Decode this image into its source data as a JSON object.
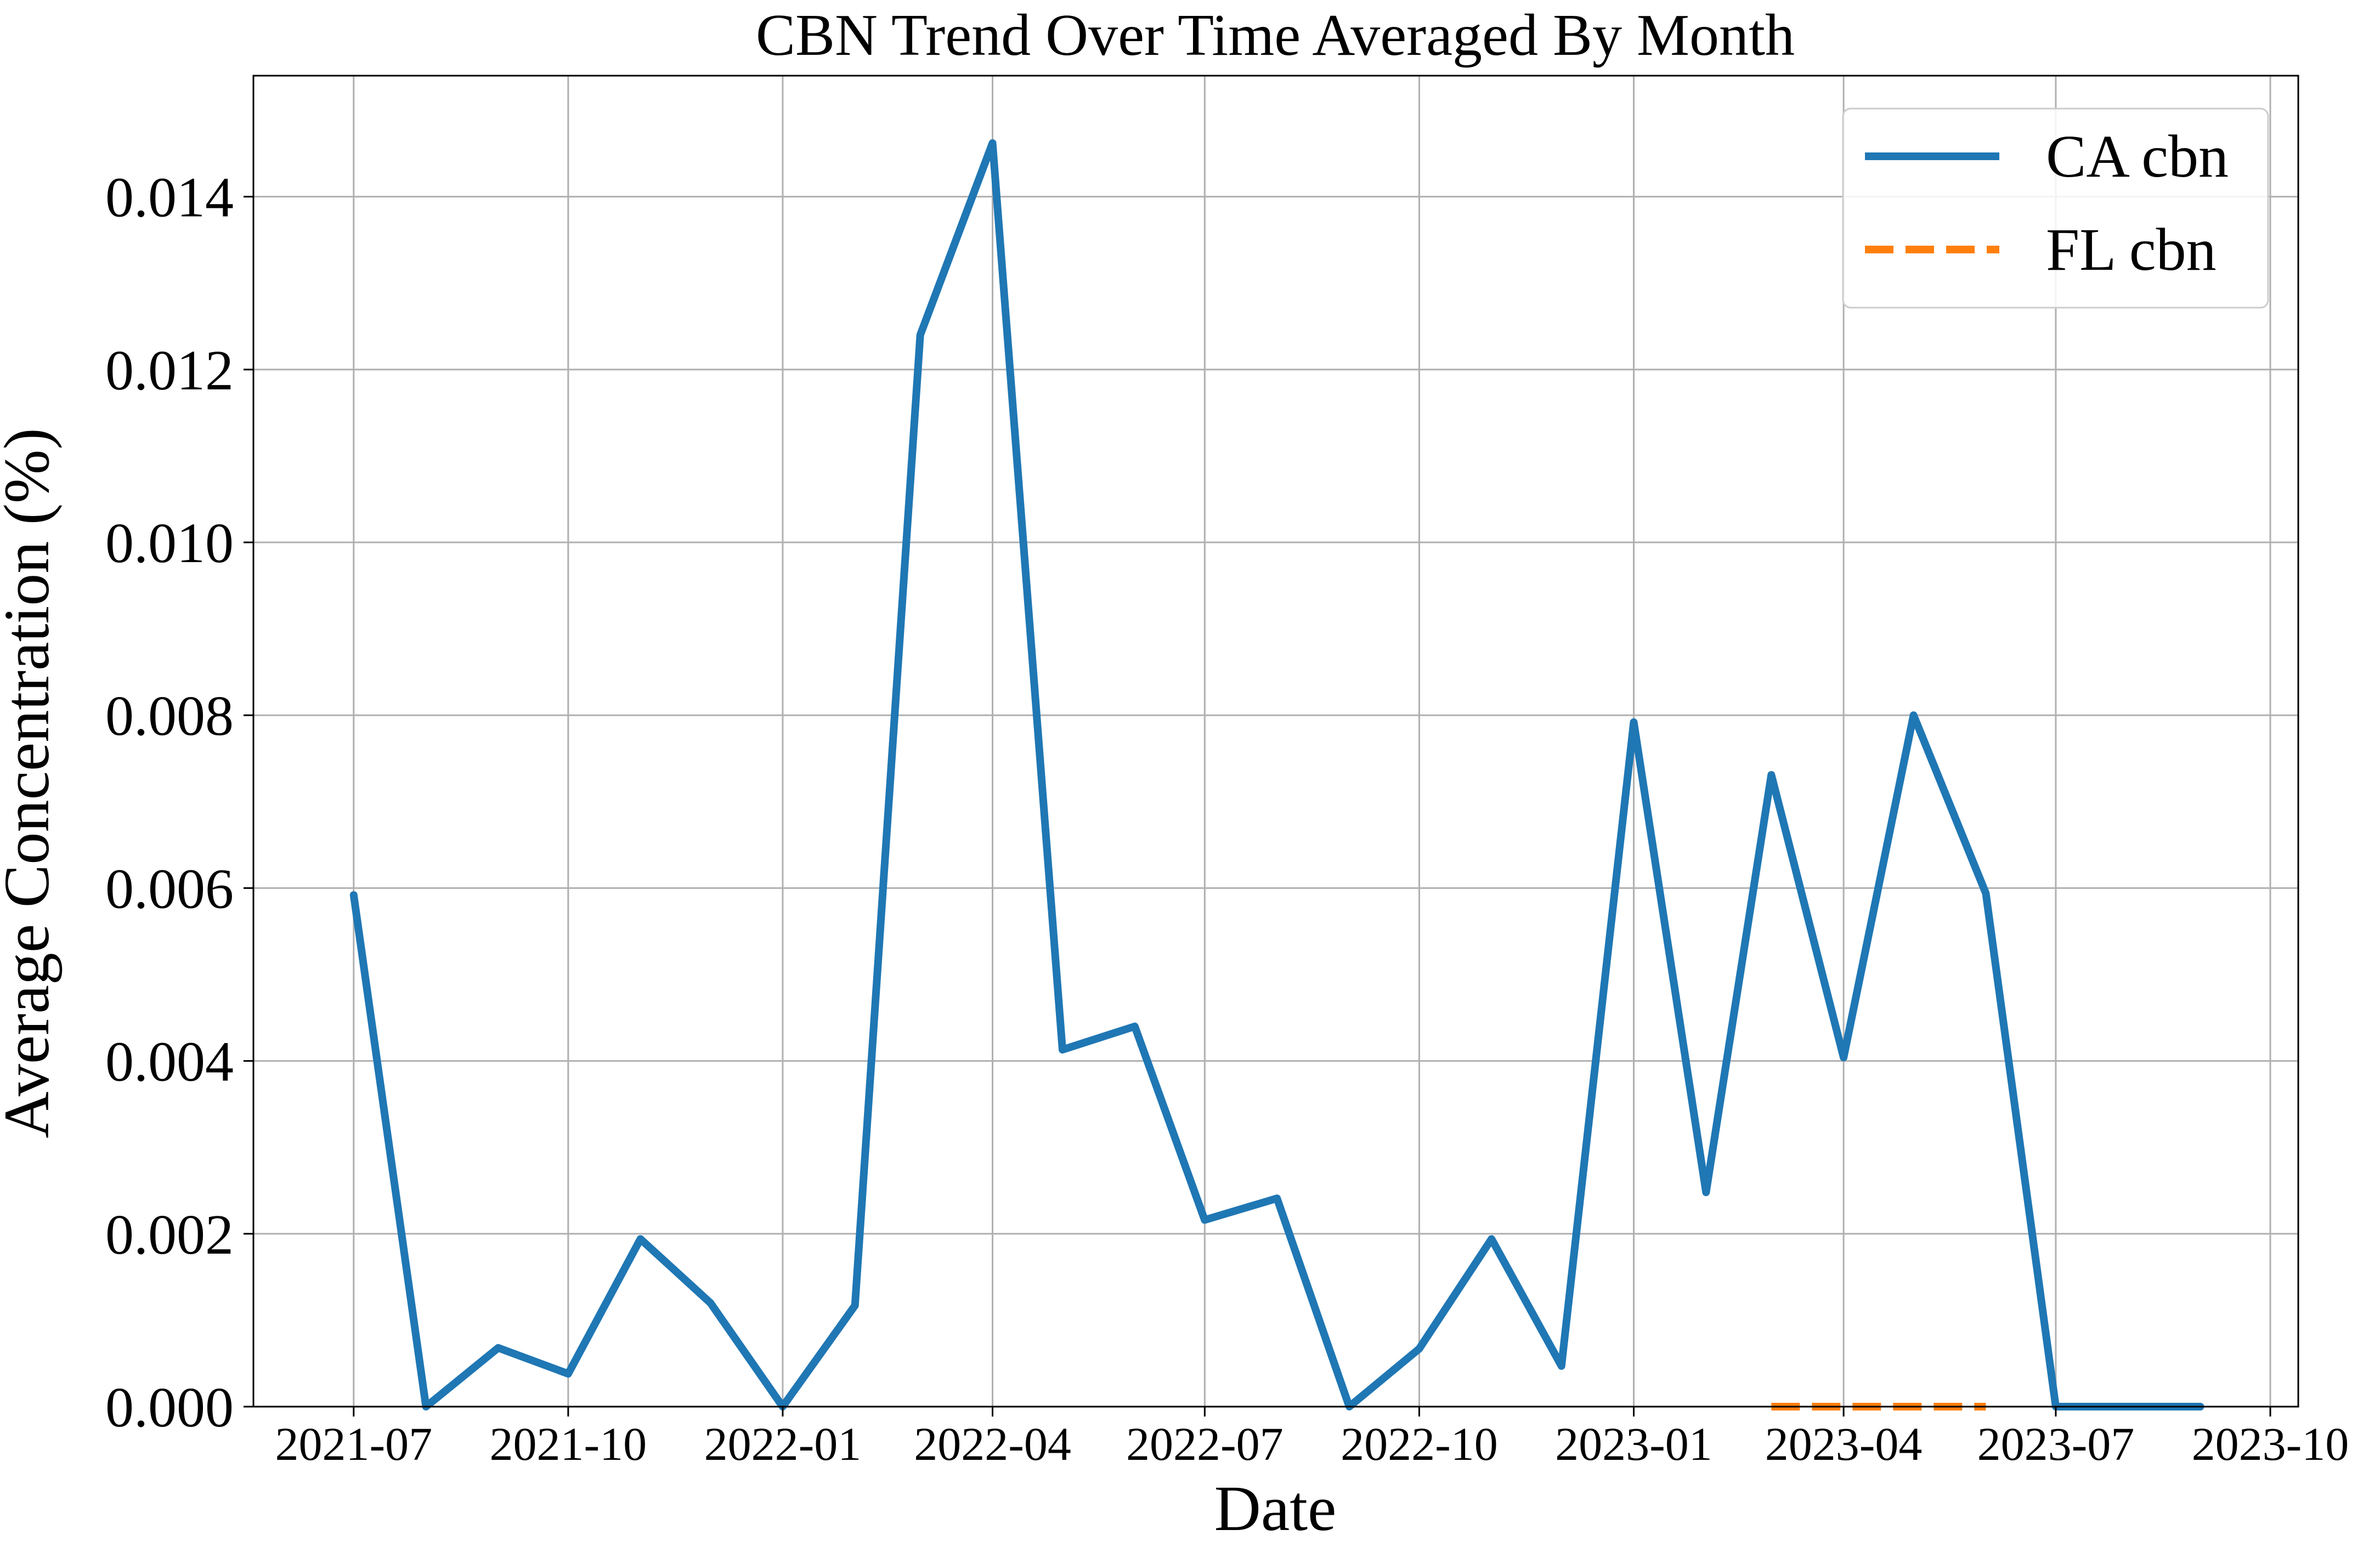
{
  "chart_data": {
    "type": "line",
    "title": "CBN Trend Over Time Averaged By Month",
    "xlabel": "Date",
    "ylabel": "Average Concentration (%)",
    "x_ticks": [
      "2021-07",
      "2021-10",
      "2022-01",
      "2022-04",
      "2022-07",
      "2022-10",
      "2023-01",
      "2023-04",
      "2023-07",
      "2023-10"
    ],
    "y_ticks": [
      "0.000",
      "0.002",
      "0.004",
      "0.006",
      "0.008",
      "0.010",
      "0.012",
      "0.014"
    ],
    "ylim": [
      0,
      0.0154
    ],
    "xlim": [
      "2021-05-19",
      "2023-10-13"
    ],
    "grid": true,
    "legend_position": "top-right",
    "series": [
      {
        "name": "CA cbn",
        "color": "#1f77b4",
        "dash": "solid",
        "points": [
          [
            "2021-07-01",
            0.00592
          ],
          [
            "2021-08-01",
            0.0
          ],
          [
            "2021-09-01",
            0.00068
          ],
          [
            "2021-10-01",
            0.00038
          ],
          [
            "2021-11-01",
            0.00194
          ],
          [
            "2021-12-01",
            0.0012
          ],
          [
            "2022-01-01",
            0.0
          ],
          [
            "2022-02-01",
            0.00117
          ],
          [
            "2022-03-01",
            0.0124
          ],
          [
            "2022-04-01",
            0.01462
          ],
          [
            "2022-05-01",
            0.00413
          ],
          [
            "2022-06-01",
            0.0044
          ],
          [
            "2022-07-01",
            0.00216
          ],
          [
            "2022-08-01",
            0.00241
          ],
          [
            "2022-09-01",
            0.0
          ],
          [
            "2022-10-01",
            0.00067
          ],
          [
            "2022-11-01",
            0.00194
          ],
          [
            "2022-12-01",
            0.00047
          ],
          [
            "2023-01-01",
            0.00792
          ],
          [
            "2023-02-01",
            0.00248
          ],
          [
            "2023-03-01",
            0.00731
          ],
          [
            "2023-04-01",
            0.00404
          ],
          [
            "2023-05-01",
            0.008
          ],
          [
            "2023-06-01",
            0.00594
          ],
          [
            "2023-07-01",
            0.0
          ],
          [
            "2023-08-01",
            0.0
          ],
          [
            "2023-09-01",
            0.0
          ]
        ]
      },
      {
        "name": "FL cbn",
        "color": "#ff7f0e",
        "dash": "dashed",
        "points": [
          [
            "2023-03-01",
            0.0
          ],
          [
            "2023-04-01",
            0.0
          ],
          [
            "2023-05-01",
            0.0
          ],
          [
            "2023-06-01",
            0.0
          ]
        ]
      }
    ]
  }
}
